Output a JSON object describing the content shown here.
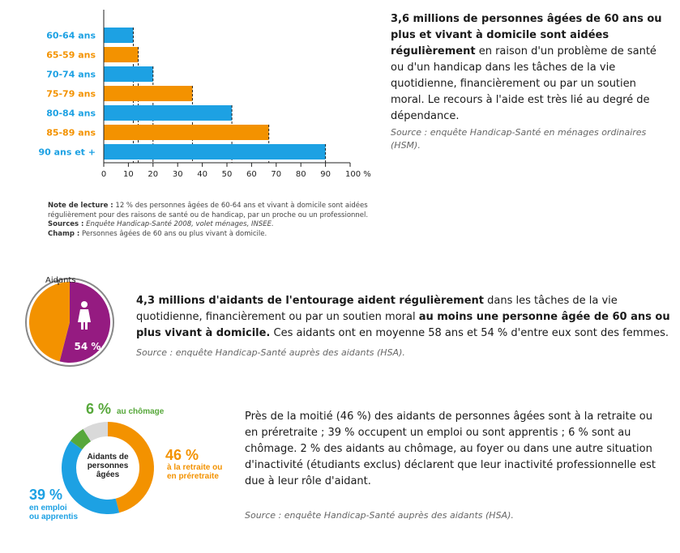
{
  "colors": {
    "blue": "#1da1e3",
    "orange": "#f39200",
    "purple": "#951b81",
    "green": "#57a83b",
    "grey": "#888888"
  },
  "chart_data": [
    {
      "type": "bar",
      "orientation": "horizontal",
      "categories": [
        "60-64 ans",
        "65-59 ans",
        "70-74 ans",
        "75-79 ans",
        "80-84 ans",
        "85-89 ans",
        "90 ans et +"
      ],
      "values": [
        12,
        14,
        20,
        36,
        52,
        67,
        90
      ],
      "category_colors": [
        "blue",
        "orange",
        "blue",
        "orange",
        "blue",
        "orange",
        "blue"
      ],
      "xlim": [
        0,
        100
      ],
      "xticks": [
        "0",
        "10",
        "20",
        "30",
        "40",
        "50",
        "60",
        "70",
        "80",
        "90",
        "100 %"
      ],
      "grid": false
    },
    {
      "type": "pie",
      "title": "Aidants",
      "slices": [
        {
          "label": "54 %",
          "value": 54,
          "color": "purple"
        },
        {
          "label": "",
          "value": 46,
          "color": "orange"
        }
      ]
    },
    {
      "type": "pie",
      "style": "donut",
      "center_label": "Aidants de personnes âgées",
      "slices": [
        {
          "value_label": "46 %",
          "label": "à la retraite ou en préretraite",
          "value": 46,
          "color": "orange"
        },
        {
          "value_label": "39 %",
          "label": "en emploi ou apprentis",
          "value": 39,
          "color": "blue"
        },
        {
          "value_label": "6 %",
          "label": "au chômage",
          "value": 6,
          "color": "green"
        }
      ]
    }
  ],
  "section1": {
    "bold": "3,6 millions de personnes âgées de 60 ans ou plus et vivant à domicile sont aidées régulièrement",
    "text": "en raison d'un problème de santé ou d'un handicap dans les tâches de la vie quotidienne, financièrement ou par un soutien moral. Le recours à l'aide est très lié au degré de dépendance.",
    "source": "Source : enquête Handicap-Santé en ménages ordinaires (HSM)."
  },
  "note": {
    "lecture_label": "Note de lecture :",
    "lecture_text": "12 % des personnes âgées de 60-64 ans et vivant à domicile sont aidées régulièrement pour des raisons de santé ou de handicap, par un proche ou un professionnel.",
    "sources_label": "Sources :",
    "sources_text": "Enquête Handicap-Santé 2008, volet ménages, INSEE.",
    "champ_label": "Champ :",
    "champ_text": "Personnes âgées de 60 ans ou plus vivant à domicile."
  },
  "section2": {
    "bold1": "4,3 millions d'aidants de l'entourage aident régulièrement",
    "text1": "dans les tâches de la vie quotidienne, financièrement ou par un soutien moral",
    "bold2": "au moins une personne âgée de 60 ans ou plus vivant à domicile.",
    "text2": "Ces aidants ont en moyenne 58 ans et 54 % d'entre eux sont des femmes.",
    "source": "Source : enquête Handicap-Santé auprès des aidants (HSA)."
  },
  "section3": {
    "text": "Près de la moitié (46 %) des aidants de personnes âgées sont à la retraite ou en préretraite ; 39 % occupent un emploi ou sont apprentis ; 6 % sont au chômage. 2 % des aidants au chômage, au foyer ou dans une autre situation d'inactivité (étudiants exclus) déclarent que leur inactivité professionnelle est due à leur rôle d'aidant.",
    "source": "Source : enquête Handicap-Santé auprès des aidants (HSA)."
  },
  "icons": [
    "woman-icon"
  ]
}
